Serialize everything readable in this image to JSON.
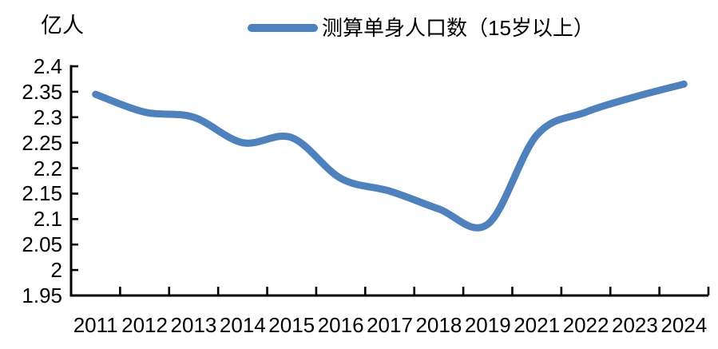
{
  "header": {
    "unit_label": "亿人"
  },
  "legend": {
    "label": "测算单身人口数（15岁以上）",
    "swatch_color": "#4F81BD"
  },
  "colors": {
    "line": "#4F81BD",
    "axis": "#000000",
    "text": "#000000",
    "background": "#FFFFFF"
  },
  "chart_data": {
    "type": "line",
    "title": "",
    "unit": "亿人",
    "legend_position": "top",
    "grid": false,
    "smoothed": true,
    "categories": [
      "2011",
      "2012",
      "2013",
      "2014",
      "2015",
      "2016",
      "2017",
      "2018",
      "2019",
      "2021",
      "2022",
      "2023",
      "2024"
    ],
    "series": [
      {
        "name": "测算单身人口数（15岁以上）",
        "values": [
          2.345,
          2.31,
          2.3,
          2.25,
          2.26,
          2.18,
          2.155,
          2.12,
          2.09,
          2.265,
          2.31,
          2.34,
          2.365
        ]
      }
    ],
    "ylim": [
      1.95,
      2.4
    ],
    "ytick_step": 0.05,
    "ytick_labels": [
      "2.4",
      "2.35",
      "2.3",
      "2.25",
      "2.2",
      "2.15",
      "2.1",
      "2.05",
      "2",
      "1.95"
    ],
    "line_color": "#4F81BD",
    "line_width": 9
  }
}
